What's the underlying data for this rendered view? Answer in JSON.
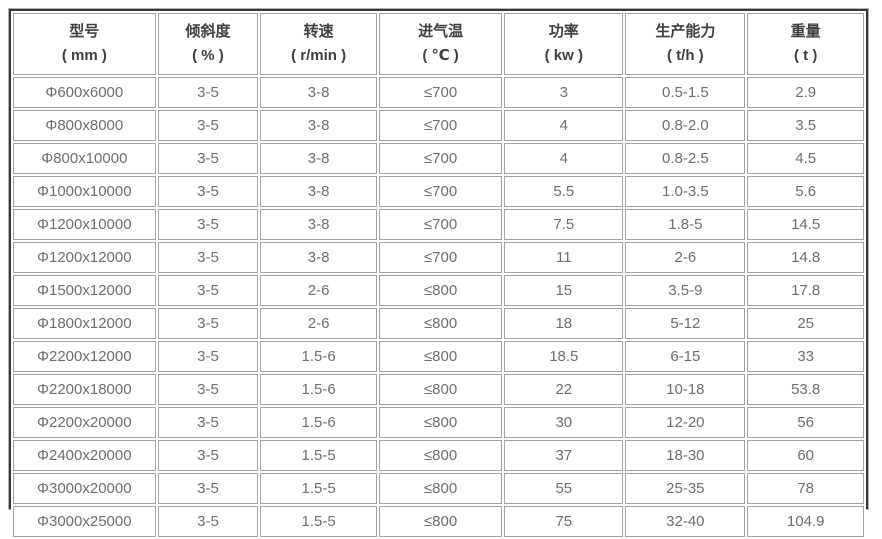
{
  "colors": {
    "header_text": "#3f3f3f",
    "cell_text": "#6e6e6e",
    "cell_border": "#a4a4a4",
    "outer_border_dark": "#383838",
    "outer_border_light": "#b3b3b3",
    "background": "#ffffff"
  },
  "chart_data": {
    "type": "table",
    "columns": [
      {
        "title": "型号",
        "unit": "( mm )"
      },
      {
        "title": "倾斜度",
        "unit": "( % )"
      },
      {
        "title": "转速",
        "unit": "( r/min )"
      },
      {
        "title": "进气温",
        "unit": "( ℃ )"
      },
      {
        "title": "功率",
        "unit": "( kw )"
      },
      {
        "title": "生产能力",
        "unit": "( t/h )"
      },
      {
        "title": "重量",
        "unit": "( t )"
      }
    ],
    "rows": [
      [
        "Φ600x6000",
        "3-5",
        "3-8",
        "≤700",
        "3",
        "0.5-1.5",
        "2.9"
      ],
      [
        "Φ800x8000",
        "3-5",
        "3-8",
        "≤700",
        "4",
        "0.8-2.0",
        "3.5"
      ],
      [
        "Φ800x10000",
        "3-5",
        "3-8",
        "≤700",
        "4",
        "0.8-2.5",
        "4.5"
      ],
      [
        "Φ1000x10000",
        "3-5",
        "3-8",
        "≤700",
        "5.5",
        "1.0-3.5",
        "5.6"
      ],
      [
        "Φ1200x10000",
        "3-5",
        "3-8",
        "≤700",
        "7.5",
        "1.8-5",
        "14.5"
      ],
      [
        "Φ1200x12000",
        "3-5",
        "3-8",
        "≤700",
        "11",
        "2-6",
        "14.8"
      ],
      [
        "Φ1500x12000",
        "3-5",
        "2-6",
        "≤800",
        "15",
        "3.5-9",
        "17.8"
      ],
      [
        "Φ1800x12000",
        "3-5",
        "2-6",
        "≤800",
        "18",
        "5-12",
        "25"
      ],
      [
        "Φ2200x12000",
        "3-5",
        "1.5-6",
        "≤800",
        "18.5",
        "6-15",
        "33"
      ],
      [
        "Φ2200x18000",
        "3-5",
        "1.5-6",
        "≤800",
        "22",
        "10-18",
        "53.8"
      ],
      [
        "Φ2200x20000",
        "3-5",
        "1.5-6",
        "≤800",
        "30",
        "12-20",
        "56"
      ],
      [
        "Φ2400x20000",
        "3-5",
        "1.5-5",
        "≤800",
        "37",
        "18-30",
        "60"
      ],
      [
        "Φ3000x20000",
        "3-5",
        "1.5-5",
        "≤800",
        "55",
        "25-35",
        "78"
      ],
      [
        "Φ3000x25000",
        "3-5",
        "1.5-5",
        "≤800",
        "75",
        "32-40",
        "104.9"
      ]
    ]
  }
}
